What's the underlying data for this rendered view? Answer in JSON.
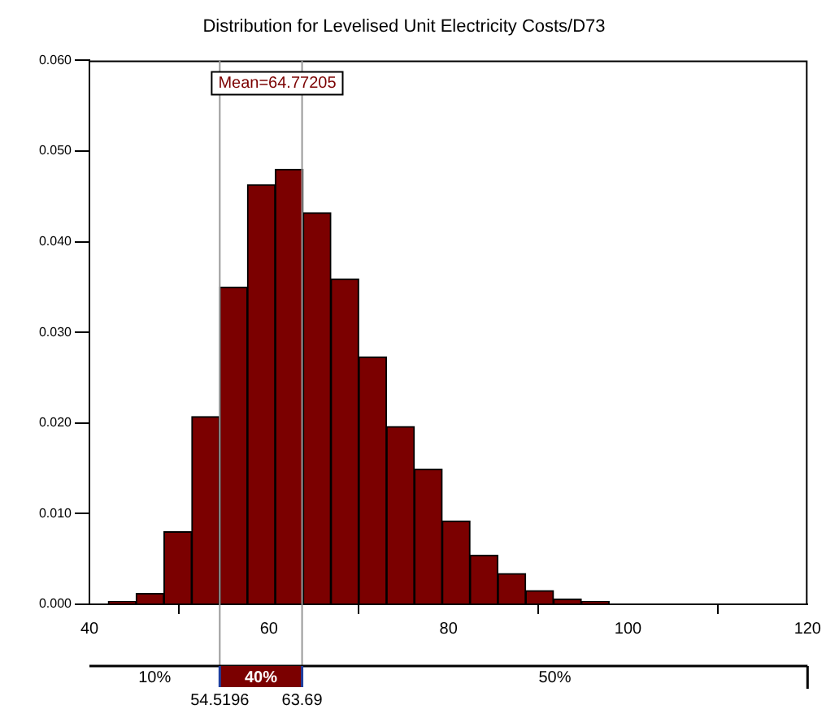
{
  "chart_data": {
    "type": "histogram",
    "title": "Distribution for Levelised Unit Electricity Costs/D73",
    "bins": [
      42.1,
      45.2,
      48.3,
      51.4,
      54.5,
      57.6,
      60.7,
      63.8,
      66.9,
      70.0,
      73.1,
      76.2,
      79.3,
      82.4,
      85.5,
      88.6,
      91.7,
      94.8,
      97.9
    ],
    "values": [
      0.0003,
      0.0012,
      0.008,
      0.0207,
      0.035,
      0.0463,
      0.048,
      0.0432,
      0.0359,
      0.0273,
      0.0196,
      0.0149,
      0.0092,
      0.0054,
      0.0034,
      0.0015,
      0.0006,
      0.0003
    ],
    "color": "#7b0000",
    "xlim": [
      40,
      120
    ],
    "xticks": [
      40,
      60,
      80,
      100,
      120
    ],
    "ylim": [
      0,
      0.06
    ],
    "yticks": [
      {
        "value": 0,
        "label": "0.000"
      },
      {
        "value": 0.01,
        "label": "0.010"
      },
      {
        "value": 0.02,
        "label": "0.020"
      },
      {
        "value": 0.03,
        "label": "0.030"
      },
      {
        "value": 0.04,
        "label": "0.040"
      },
      {
        "value": 0.05,
        "label": "0.050"
      },
      {
        "value": 0.06,
        "label": "0.060"
      }
    ],
    "grid": false,
    "ref_lines": [
      {
        "axis": "x",
        "value": 54.5196,
        "label": "54.5196",
        "color": "#999999"
      },
      {
        "axis": "x",
        "value": 63.69,
        "label": "63.69",
        "color": "#999999"
      }
    ],
    "annotations": [
      "Mean=64.77205",
      "10%",
      "40%",
      "50%"
    ]
  }
}
